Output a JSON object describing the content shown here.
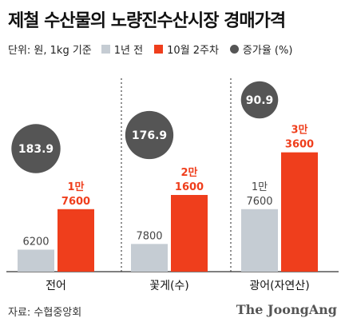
{
  "title": "제철 수산물의 노량진수산시장 경매가격",
  "unit_label": "단위: 원, 1kg 기준",
  "brand": "The JoongAng",
  "source": "자료: 수협중앙회",
  "colors": {
    "previous": "#c5ccd3",
    "current": "#ef3e1c",
    "growth": "#555555",
    "current_text": "#ef3e1c",
    "previous_text": "#444444"
  },
  "chart_data": {
    "type": "bar",
    "categories": [
      "전어",
      "꽃게(수)",
      "광어(자연산)"
    ],
    "series": [
      {
        "name": "1년 전",
        "values": [
          6200,
          7800,
          17600
        ],
        "labels": [
          [
            "6200"
          ],
          [
            "7800"
          ],
          [
            "1만",
            "7600"
          ]
        ]
      },
      {
        "name": "10월 2주차",
        "values": [
          17600,
          21600,
          33600
        ],
        "labels": [
          [
            "1만",
            "7600"
          ],
          [
            "2만",
            "1600"
          ],
          [
            "3만",
            "3600"
          ]
        ]
      }
    ],
    "growth": {
      "name": "증가율 (%)",
      "values": [
        183.9,
        176.9,
        90.9
      ],
      "labels": [
        "183.9",
        "176.9",
        "90.9"
      ]
    },
    "ylim": [
      0,
      36000
    ],
    "grid": false,
    "legend_position": "top-left"
  }
}
